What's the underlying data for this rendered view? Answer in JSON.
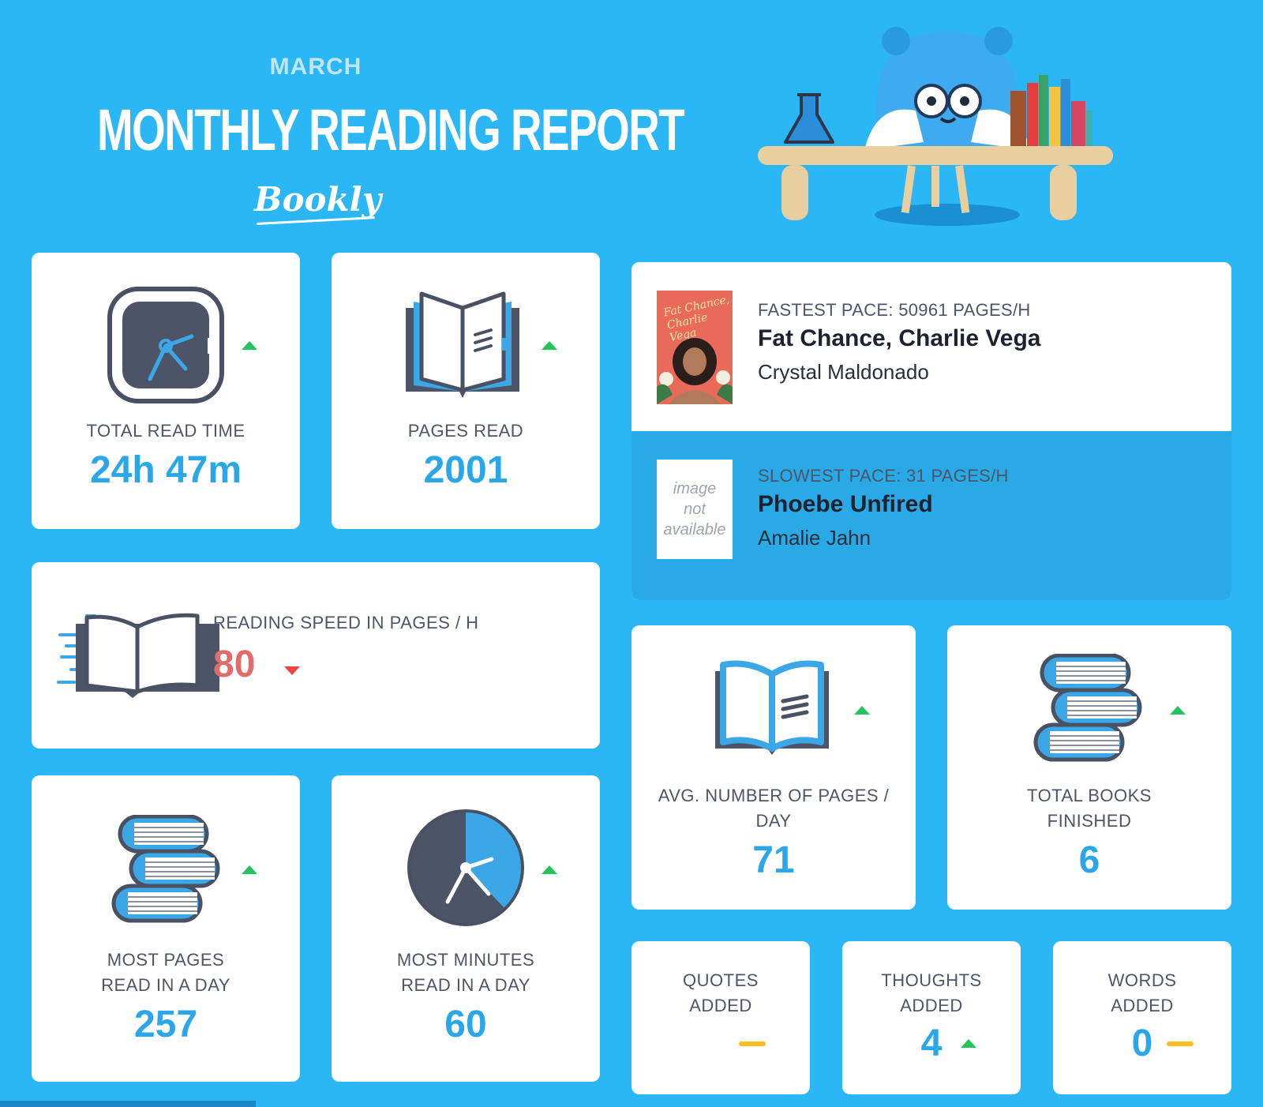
{
  "header": {
    "month": "MARCH",
    "title": "MONTHLY READING REPORT",
    "brand": "Bookly"
  },
  "colors": {
    "background": "#2bb6f5",
    "value_blue": "#2aa7e8",
    "value_red": "#e06c6c",
    "trend_up": "#22c55e",
    "trend_down": "#ef4444",
    "trend_flat": "#fbbf24"
  },
  "stats": {
    "total_read_time": {
      "label": "TOTAL READ TIME",
      "value": "24h 47m",
      "trend": "up",
      "icon": "clock-icon"
    },
    "pages_read": {
      "label": "PAGES READ",
      "value": "2001",
      "trend": "up",
      "icon": "open-book-icon"
    },
    "reading_speed": {
      "label": "READING SPEED IN PAGES / H",
      "value": "80",
      "trend": "down",
      "icon": "fast-book-icon"
    },
    "most_pages_day": {
      "label_line1": "MOST PAGES",
      "label_line2": "READ IN A DAY",
      "value": "257",
      "trend": "up",
      "icon": "book-stack-icon"
    },
    "most_minutes_day": {
      "label_line1": "MOST MINUTES",
      "label_line2": "READ IN A DAY",
      "value": "60",
      "trend": "up",
      "icon": "pie-clock-icon"
    },
    "avg_pages_day": {
      "label_line1": "AVG. NUMBER OF PAGES /",
      "label_line2": "DAY",
      "value": "71",
      "trend": "up",
      "icon": "open-book-icon"
    },
    "total_books_finished": {
      "label_line1": "TOTAL BOOKS",
      "label_line2": "FINISHED",
      "value": "6",
      "trend": "up",
      "icon": "book-stack-icon"
    },
    "quotes_added": {
      "label_line1": "QUOTES",
      "label_line2": "ADDED",
      "value": "",
      "trend": "flat"
    },
    "thoughts_added": {
      "label_line1": "THOUGHTS",
      "label_line2": "ADDED",
      "value": "4",
      "trend": "up"
    },
    "words_added": {
      "label_line1": "WORDS",
      "label_line2": "ADDED",
      "value": "0",
      "trend": "flat"
    }
  },
  "pace": {
    "fastest": {
      "heading": "FASTEST PACE: 50961 PAGES/H",
      "title": "Fat Chance, Charlie Vega",
      "author": "Crystal Maldonado",
      "cover_text_1": "Fat Chance,",
      "cover_text_2": "Charlie Vega"
    },
    "slowest": {
      "heading": "SLOWEST PACE: 31 PAGES/H",
      "title": "Phoebe Unfired",
      "author": "Amalie Jahn",
      "cover_line1": "image",
      "cover_line2": "not",
      "cover_line3": "available"
    }
  }
}
